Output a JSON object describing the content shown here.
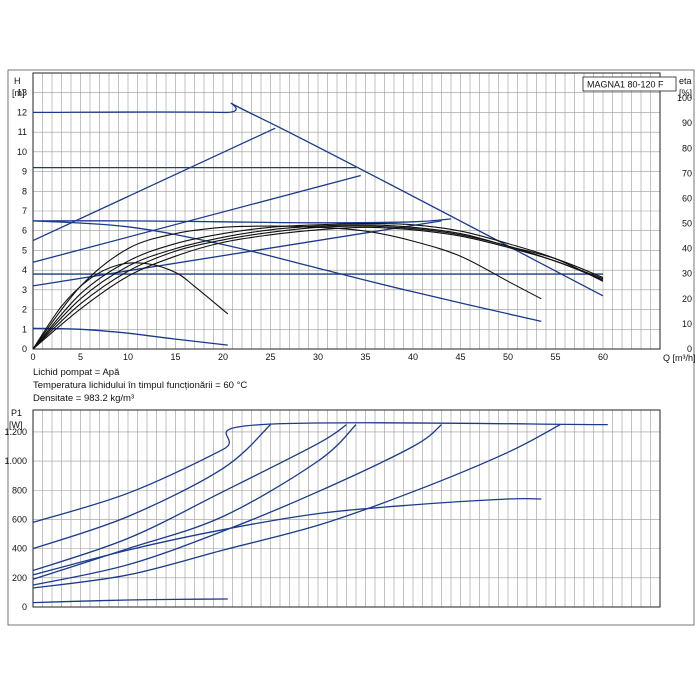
{
  "chart_data": [
    {
      "type": "line",
      "title": "MAGNA1 80-120 F",
      "xlabel": "Q [m³/h]",
      "ylabel_left": "H\n[m]",
      "ylabel_right": "eta\n[%]",
      "ylabel_left_lines": [
        "H",
        "[m]"
      ],
      "ylabel_right_lines": [
        "eta",
        "[%]"
      ],
      "xlim": [
        0,
        66
      ],
      "ylim_left": [
        0,
        14
      ],
      "ylim_right": [
        0,
        110
      ],
      "x_ticks": [
        0,
        5,
        10,
        15,
        20,
        25,
        30,
        35,
        40,
        45,
        50,
        55,
        60
      ],
      "x_tick_labels": [
        "0",
        "5",
        "10",
        "15",
        "20",
        "25",
        "30",
        "35",
        "40",
        "45",
        "50",
        "55",
        "60"
      ],
      "y_left_ticks": [
        0,
        1,
        2,
        3,
        4,
        5,
        6,
        7,
        8,
        9,
        10,
        11,
        12,
        13
      ],
      "y_left_tick_labels": [
        "0",
        "1",
        "2",
        "3",
        "4",
        "5",
        "6",
        "7",
        "8",
        "9",
        "10",
        "11",
        "12",
        "13"
      ],
      "y_right_ticks": [
        0,
        10,
        20,
        30,
        40,
        50,
        60,
        70,
        80,
        90,
        100
      ],
      "y_right_tick_labels": [
        "0",
        "10",
        "20",
        "30",
        "40",
        "50",
        "60",
        "70",
        "80",
        "90",
        "100"
      ],
      "grid": true,
      "notes": [
        "Lichid pompat = Apă",
        "Temperatura lichidului în timpul funcționării = 60 °C",
        "Densitate = 983.2 kg/m³"
      ],
      "series_h": [
        {
          "color": "#1a3a8c",
          "x": [
            0,
            20,
            24,
            60
          ],
          "y": [
            12,
            12,
            11.7,
            2.7
          ]
        },
        {
          "color": "#1a3a8c",
          "x": [
            0,
            34
          ],
          "y": [
            9.2,
            9.2
          ]
        },
        {
          "color": "#1a3a8c",
          "x": [
            0,
            60
          ],
          "y": [
            3.8,
            3.8
          ]
        },
        {
          "color": "#1a3a8c",
          "x": [
            0,
            10,
            20,
            30,
            40,
            44
          ],
          "y": [
            6.5,
            6.5,
            6.45,
            6.4,
            6.45,
            6.6
          ]
        },
        {
          "color": "#1a3a8c",
          "x": [
            0,
            25.5
          ],
          "y": [
            5.5,
            11.2
          ]
        },
        {
          "color": "#1a3a8c",
          "x": [
            0,
            34.5
          ],
          "y": [
            4.4,
            8.8
          ]
        },
        {
          "color": "#1a3a8c",
          "x": [
            0,
            43
          ],
          "y": [
            3.2,
            6.5
          ]
        },
        {
          "color": "#1a3a8c",
          "x": [
            0,
            10,
            20,
            30,
            40,
            53.5
          ],
          "y": [
            6.5,
            6.2,
            5.3,
            4.1,
            2.9,
            1.4
          ]
        },
        {
          "color": "#1a3a8c",
          "x": [
            0,
            5,
            10,
            15,
            20.5
          ],
          "y": [
            1.05,
            1.0,
            0.8,
            0.5,
            0.2
          ]
        }
      ],
      "series_eta": [
        {
          "color": "#111111",
          "x": [
            0,
            3,
            6,
            9,
            12,
            15,
            17,
            20.5
          ],
          "y": [
            0,
            17,
            28,
            33.5,
            34,
            30.5,
            25,
            14
          ]
        },
        {
          "color": "#111111",
          "x": [
            0,
            5,
            10,
            15,
            20,
            25,
            30,
            35,
            40,
            45,
            50,
            53.5
          ],
          "y": [
            0,
            25,
            40,
            46,
            48.5,
            49,
            48.5,
            47,
            43,
            37,
            27,
            20
          ]
        },
        {
          "color": "#111111",
          "x": [
            0,
            5,
            10,
            15,
            20,
            25,
            30,
            35,
            40,
            45,
            50,
            55,
            60
          ],
          "y": [
            0,
            22,
            35,
            42,
            46,
            48.5,
            49.5,
            50,
            49.5,
            47,
            42,
            36,
            27
          ]
        },
        {
          "color": "#111111",
          "x": [
            0,
            5,
            10,
            15,
            20,
            25,
            30,
            35,
            40,
            45,
            50,
            55,
            60
          ],
          "y": [
            0,
            20,
            33,
            40,
            44.5,
            47.5,
            49,
            49.5,
            48.5,
            46,
            41,
            36,
            28.5
          ]
        },
        {
          "color": "#111111",
          "x": [
            0,
            5,
            10,
            15,
            20,
            25,
            30,
            35,
            40,
            45,
            50,
            55,
            60
          ],
          "y": [
            0,
            18,
            31,
            39,
            43.5,
            46.5,
            48.5,
            49,
            48,
            45.5,
            41,
            35,
            28
          ]
        },
        {
          "color": "#111111",
          "x": [
            0,
            5,
            10,
            15,
            20,
            25,
            30,
            35,
            40,
            45,
            50,
            55,
            60
          ],
          "y": [
            0,
            16,
            29,
            37,
            42.5,
            45.5,
            47.5,
            48.5,
            47.5,
            45,
            40.5,
            35,
            27.5
          ]
        }
      ]
    },
    {
      "type": "line",
      "ylabel": "P1\n[W]",
      "ylabel_lines": [
        "P1",
        "[W]"
      ],
      "xlim": [
        0,
        66
      ],
      "ylim": [
        0,
        1350
      ],
      "x_ticks": [
        0,
        5,
        10,
        15,
        20,
        25,
        30,
        35,
        40,
        45,
        50,
        55,
        60
      ],
      "y_ticks": [
        0,
        200,
        400,
        600,
        800,
        1000,
        1200
      ],
      "y_tick_labels": [
        "0",
        "200",
        "400",
        "600",
        "800",
        "1.000",
        "1.200"
      ],
      "grid": true,
      "series": [
        {
          "color": "#1a3a8c",
          "x": [
            0,
            10,
            20,
            24,
            60.5
          ],
          "y": [
            580,
            780,
            1080,
            1250,
            1250
          ]
        },
        {
          "color": "#1a3a8c",
          "x": [
            0,
            10,
            20,
            25
          ],
          "y": [
            400,
            620,
            950,
            1250
          ]
        },
        {
          "color": "#1a3a8c",
          "x": [
            0,
            10,
            20,
            30,
            33
          ],
          "y": [
            250,
            470,
            790,
            1120,
            1250
          ]
        },
        {
          "color": "#1a3a8c",
          "x": [
            0,
            10,
            20,
            30,
            34
          ],
          "y": [
            190,
            400,
            620,
            1000,
            1250
          ]
        },
        {
          "color": "#1a3a8c",
          "x": [
            0,
            10,
            20,
            30,
            40,
            43
          ],
          "y": [
            150,
            290,
            520,
            790,
            1100,
            1250
          ]
        },
        {
          "color": "#1a3a8c",
          "x": [
            0,
            10,
            20,
            30,
            40,
            50,
            55.5
          ],
          "y": [
            130,
            220,
            390,
            560,
            790,
            1060,
            1250
          ]
        },
        {
          "color": "#1a3a8c",
          "x": [
            0,
            10,
            20,
            30,
            40,
            50,
            53.5
          ],
          "y": [
            220,
            390,
            530,
            640,
            700,
            740,
            740
          ]
        },
        {
          "color": "#1a3a8c",
          "x": [
            0,
            5,
            10,
            15,
            20.5
          ],
          "y": [
            30,
            40,
            48,
            52,
            55
          ]
        }
      ]
    }
  ]
}
